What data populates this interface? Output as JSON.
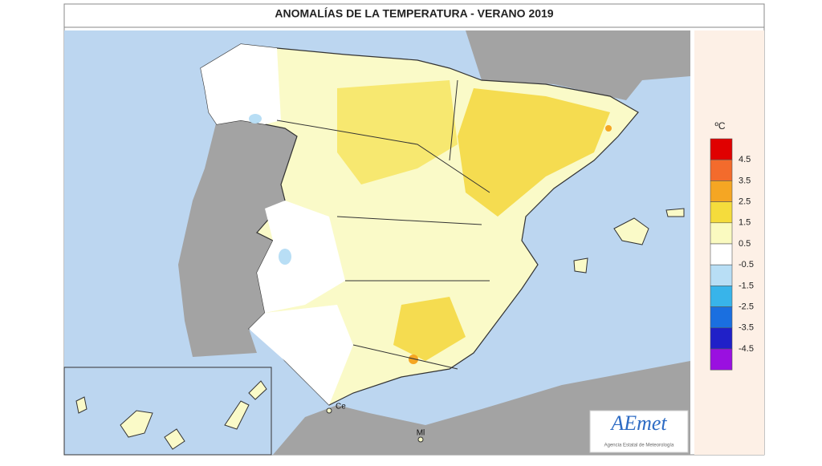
{
  "header": {
    "title": "ANOMALÍAS DE LA TEMPERATURA - VERANO 2019"
  },
  "legend": {
    "unit": "ºC",
    "items": [
      {
        "label": 4.5,
        "color": "#e00000"
      },
      {
        "label": 3.5,
        "color": "#f36b2c"
      },
      {
        "label": 2.5,
        "color": "#f5a623"
      },
      {
        "label": 1.5,
        "color": "#f5dc3c"
      },
      {
        "label": 0.5,
        "color": "#fafac0"
      },
      {
        "label": -0.5,
        "color": "#ffffff"
      },
      {
        "label": -1.5,
        "color": "#b8def5"
      },
      {
        "label": -2.5,
        "color": "#38b4ea"
      },
      {
        "label": -3.5,
        "color": "#1a6fe0"
      },
      {
        "label": -4.5,
        "color": "#2020c8"
      },
      {
        "label": null,
        "color": "#9a10e0"
      }
    ]
  },
  "places": [
    {
      "label": "Ce"
    },
    {
      "label": "Ml"
    }
  ],
  "logo": {
    "text": "AEmet",
    "subtitle": "Agencia Estatal de Meteorología"
  }
}
